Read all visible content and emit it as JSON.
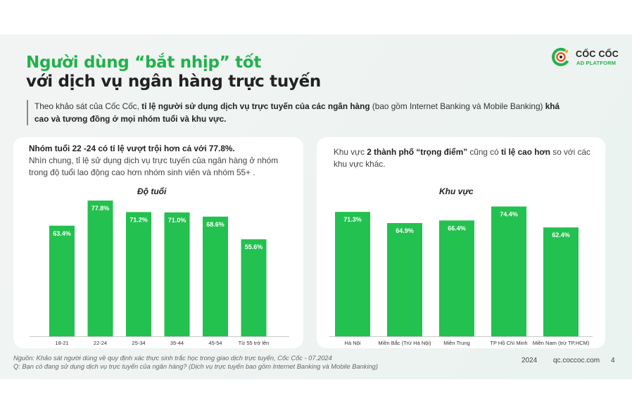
{
  "title": {
    "line1": "Người dùng “bắt nhịp” tốt",
    "line2": "với dịch vụ ngân hàng trực tuyến"
  },
  "logo": {
    "name": "CỐC CỐC",
    "sub": "AD PLATFORM",
    "icon": "coccoc-logo-icon"
  },
  "intro": {
    "p1": "Theo khảo sát của Cốc Cốc, ",
    "b1": "tỉ lệ người sử dụng dịch vụ trực tuyến của các ngân hàng",
    "p2": " (bao gồm Internet Banking và Mobile Banking) ",
    "b2": "khá cao và tương đồng ở mọi nhóm tuổi và khu vực."
  },
  "left_note": {
    "bold": "Nhóm tuổi 22 -24 có tỉ lệ vượt trội hơn cả với 77.8%.",
    "text": "Nhìn chung, tỉ lệ sử dụng dịch vụ trực tuyến của ngân hàng ở nhóm trong độ tuổi lao động cao hơn nhóm sinh viên và nhóm 55+ ."
  },
  "right_note": {
    "p1": "Khu vực ",
    "b1": "2 thành phố “trọng điểm”",
    "p2": " cũng có ",
    "b2": "tỉ lệ cao hơn",
    "p3": " so với các khu vực khác."
  },
  "chart_data": [
    {
      "type": "bar",
      "title": "Độ tuổi",
      "categories": [
        "18-21",
        "22-24",
        "25-34",
        "35-44",
        "45-54",
        "Từ 55 trở lên"
      ],
      "values": [
        63.4,
        77.8,
        71.2,
        71.0,
        68.6,
        55.6
      ],
      "labels": [
        "63.4%",
        "77.8%",
        "71.2%",
        "71.0%",
        "68.6%",
        "55.6%"
      ],
      "ylim": [
        0,
        100
      ],
      "color": "#23c14f"
    },
    {
      "type": "bar",
      "title": "Khu vực",
      "categories": [
        "Hà Nội",
        "Miền Bắc (Trừ Hà Nội)",
        "Miền Trung",
        "TP Hồ Chí Minh",
        "Miền Nam (trừ TP.HCM)"
      ],
      "values": [
        71.3,
        64.9,
        66.4,
        74.4,
        62.4
      ],
      "labels": [
        "71.3%",
        "64.9%",
        "66.4%",
        "74.4%",
        "62.4%"
      ],
      "ylim": [
        0,
        100
      ],
      "color": "#23c14f"
    }
  ],
  "footer": {
    "source": "Nguồn: Khảo sát người dùng về quy định xác thực sinh trắc học trong giao dịch trực tuyến, Cốc Cốc - 07.2024",
    "question": "Q: Bạn có đang sử dụng dịch vụ trực tuyến của ngân hàng? (Dịch vụ trực tuyến bao gồm Internet Banking và Mobile Banking)",
    "year": "2024",
    "site": "qc.coccoc.com",
    "page": "4"
  }
}
